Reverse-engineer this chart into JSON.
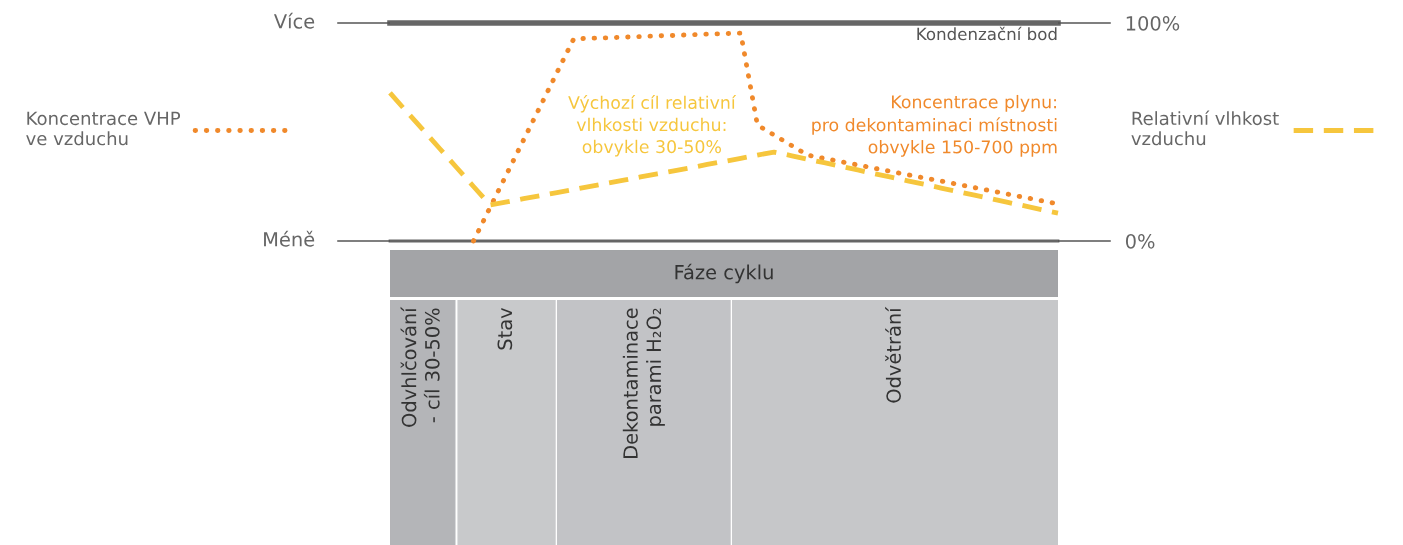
{
  "chart_data": {
    "type": "line",
    "categories": [
      null,
      null,
      null,
      null,
      null,
      null,
      null,
      null,
      null,
      null,
      null,
      null,
      null,
      null,
      null,
      null,
      null,
      null,
      null,
      null,
      null,
      null,
      null,
      null,
      null,
      null,
      null,
      null,
      null,
      null,
      null,
      null,
      null,
      null,
      null,
      null,
      null,
      null,
      null,
      null,
      null
    ],
    "ylim": [
      0,
      100
    ],
    "yticks": [
      {
        "value": 0,
        "label": "0%"
      },
      {
        "value": 100,
        "label": "100%"
      }
    ],
    "grid": false,
    "legend": "left",
    "series": [
      {
        "name": "Koncentrace VHP\nve vzduchu",
        "color": "#f0892b",
        "line_style": "dotted",
        "values": [
          null,
          null,
          null,
          null,
          null,
          0,
          15.5,
          30.9,
          46.4,
          61.8,
          77.3,
          92.7,
          93.0,
          93.2,
          93.5,
          93.8,
          94.1,
          94.3,
          94.6,
          94.9,
          95.1,
          95.4,
          53.2,
          48.6,
          44.0,
          39.4,
          37.9,
          36.4,
          34.9,
          33.4,
          31.9,
          30.4,
          28.9,
          27.5,
          26.0,
          24.5,
          23.0,
          21.5,
          20.0,
          18.5,
          17.0
        ]
      },
      {
        "name": "Relativní vlhkost\nvzduchu",
        "color": "#f6c63d",
        "line_style": "dashed",
        "values": [
          67.9,
          59.3,
          50.8,
          42.2,
          33.6,
          25.0,
          16.5,
          17.9,
          19.4,
          20.8,
          22.2,
          23.6,
          25.1,
          26.5,
          27.9,
          29.4,
          30.8,
          32.2,
          33.6,
          35.1,
          36.5,
          37.9,
          39.4,
          40.8,
          39.2,
          37.5,
          35.9,
          34.2,
          32.6,
          30.9,
          29.3,
          27.6,
          26.0,
          24.3,
          22.7,
          21.0,
          19.4,
          17.7,
          16.1,
          14.4,
          12.8
        ]
      }
    ],
    "ref_lines": [
      {
        "axis": "y",
        "value": 100,
        "label": "Kondenzační bod",
        "color": "#666666"
      },
      {
        "axis": "y",
        "value": 0,
        "color": "#666666"
      }
    ],
    "annotations": [
      "Výchozí cíl relativní\nvlhkosti vzduchu:\nobvykle 30-50%",
      "Koncentrace plynu:\npro dekontaminaci místnosti\nobvykle 150-700 ppm",
      "Více",
      "Méně",
      "Fáze cyklu",
      "Odvhlčování\n- cíl 30-50%",
      "Stav",
      "Dekontaminace\nparami H₂O₂",
      "Odvětrání"
    ]
  }
}
